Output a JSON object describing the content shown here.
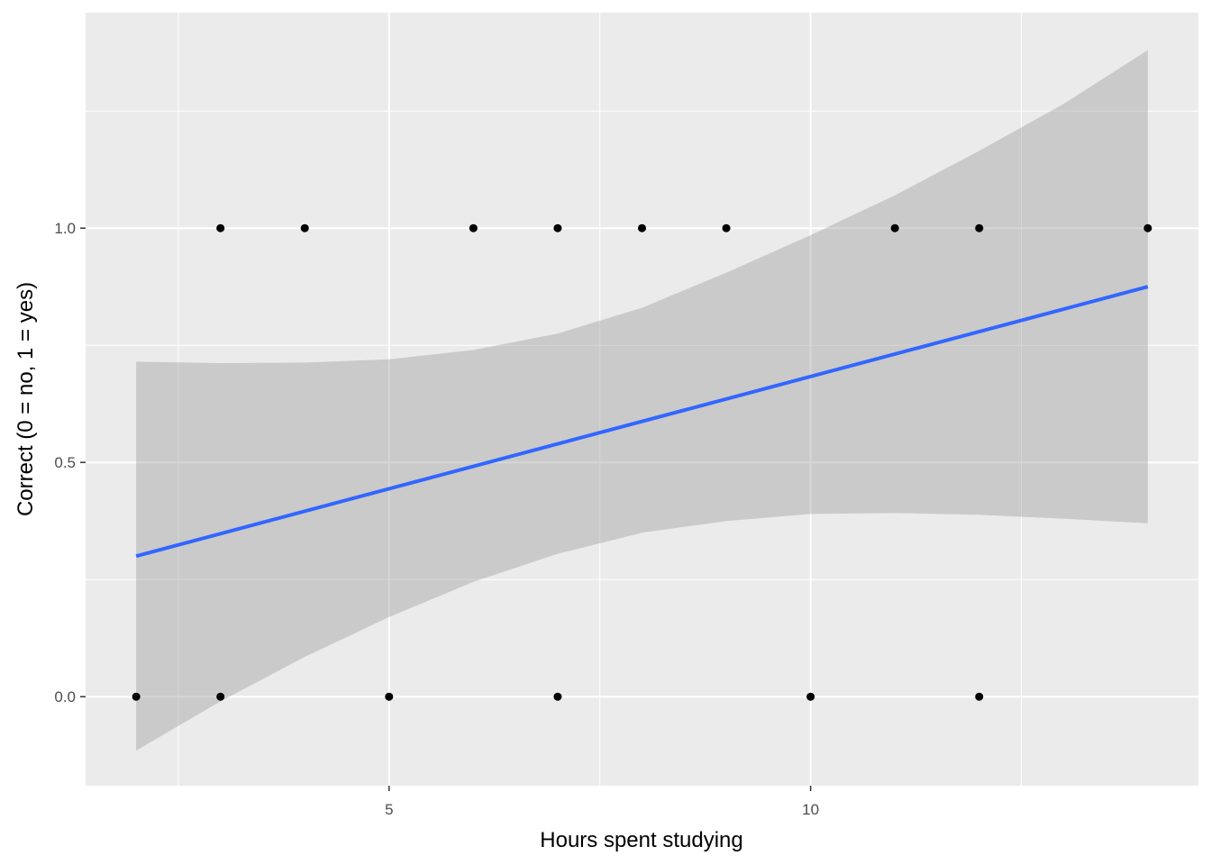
{
  "chart_data": {
    "type": "scatter",
    "title": "",
    "xlabel": "Hours spent studying",
    "ylabel": "Correct (0 = no, 1 = yes)",
    "xlim": [
      1.4,
      14.6
    ],
    "ylim": [
      -0.19,
      1.46
    ],
    "x_ticks": [
      5,
      10
    ],
    "x_tick_labels": [
      "5",
      "10"
    ],
    "y_ticks": [
      0,
      0.5,
      1
    ],
    "y_tick_labels": [
      "0.0",
      "0.5",
      "1.0"
    ],
    "x_minor_ticks": [
      2.5,
      7.5,
      12.5
    ],
    "y_minor_ticks": [
      0.25,
      0.75,
      1.25
    ],
    "grid": true,
    "legend": "none",
    "points": {
      "x": [
        2,
        3,
        3,
        4,
        5,
        6,
        7,
        7,
        8,
        9,
        10,
        11,
        12,
        12,
        14
      ],
      "y": [
        0,
        1,
        0,
        1,
        0,
        1,
        1,
        0,
        1,
        1,
        0,
        1,
        1,
        0,
        1
      ]
    },
    "fit_line": {
      "x": [
        2,
        14
      ],
      "y": [
        0.3,
        0.875
      ]
    },
    "confidence_band": {
      "x": [
        2,
        3,
        4,
        5,
        6,
        7,
        8,
        9,
        10,
        11,
        12,
        13,
        14
      ],
      "lower": [
        -0.115,
        -0.01,
        0.085,
        0.17,
        0.245,
        0.305,
        0.35,
        0.375,
        0.39,
        0.392,
        0.388,
        0.38,
        0.37
      ],
      "upper": [
        0.715,
        0.712,
        0.713,
        0.72,
        0.74,
        0.775,
        0.83,
        0.905,
        0.985,
        1.07,
        1.165,
        1.265,
        1.38
      ]
    },
    "colors": {
      "panel": "#ebebeb",
      "grid": "#ffffff",
      "points": "#000000",
      "fit_line": "#3366ff",
      "band": "#999999"
    }
  }
}
